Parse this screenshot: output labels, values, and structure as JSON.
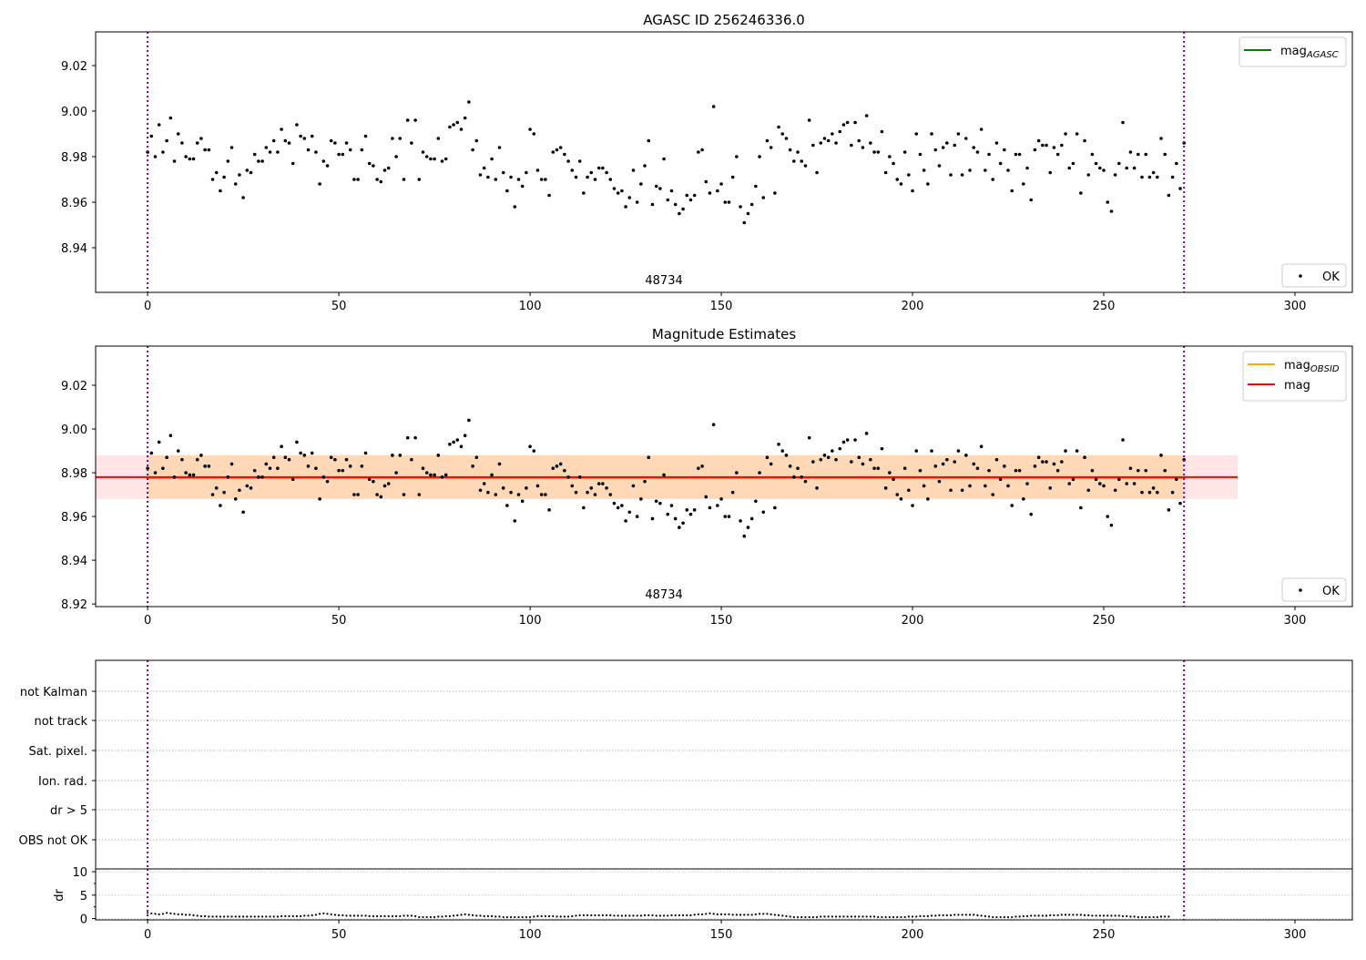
{
  "chart_data": [
    {
      "type": "scatter",
      "title": "AGASC ID 256246336.0",
      "xlim": [
        -13.6,
        315
      ],
      "ylim": [
        8.9204,
        9.0348
      ],
      "xticks": [
        0,
        50,
        100,
        150,
        200,
        250,
        300
      ],
      "yticks": [
        8.94,
        8.96,
        8.98,
        9.0,
        9.02
      ],
      "ytick_labels": [
        "8.94",
        "8.96",
        "8.98",
        "9.00",
        "9.02"
      ],
      "vlines": [
        0,
        271
      ],
      "vline_color": "#800080",
      "annotation": "48734",
      "annotation_x": 135,
      "legend_upper": [
        {
          "label": "mag",
          "sub": "AGASC",
          "color": "#008000"
        }
      ],
      "legend_lower": [
        {
          "label": "OK",
          "color": "#000000"
        }
      ],
      "series": "mag"
    },
    {
      "type": "scatter",
      "title": "Magnitude Estimates",
      "xlim": [
        -13.6,
        315
      ],
      "ylim": [
        8.9188,
        9.0379
      ],
      "xticks": [
        0,
        50,
        100,
        150,
        200,
        250,
        300
      ],
      "yticks": [
        8.92,
        8.94,
        8.96,
        8.98,
        9.0,
        9.02
      ],
      "ytick_labels": [
        "8.92",
        "8.94",
        "8.96",
        "8.98",
        "9.00",
        "9.02"
      ],
      "vlines": [
        0,
        271
      ],
      "annotation": "48734",
      "annotation_x": 135,
      "mag": 8.978,
      "mag_band": [
        8.968,
        8.988
      ],
      "mag_range_x": [
        -13.6,
        285
      ],
      "mag_obsid": 8.9775,
      "mag_obsid_band": [
        8.968,
        8.988
      ],
      "mag_obsid_range_x": [
        0,
        271
      ],
      "legend_upper": [
        {
          "label": "mag",
          "sub": "OBSID",
          "color": "#ffa500"
        },
        {
          "label": "mag",
          "sub": "",
          "color": "#ff0000"
        }
      ],
      "legend_lower": [
        {
          "label": "OK",
          "color": "#000000"
        }
      ],
      "series": "mag"
    },
    {
      "type": "table",
      "flags": [
        "not Kalman",
        "not track",
        "Sat. pixel.",
        "Ion. rad.",
        "dr > 5",
        "OBS not OK"
      ],
      "xlim": [
        -13.6,
        315
      ],
      "vlines": [
        0,
        271
      ]
    },
    {
      "type": "scatter",
      "ylabel": "dr",
      "ylim": [
        -0.3,
        10.6
      ],
      "yticks": [
        0,
        5,
        10
      ],
      "ytick_labels": [
        "0",
        "5",
        "10"
      ],
      "xticks": [
        0,
        50,
        100,
        150,
        200,
        250,
        300
      ],
      "xtick_labels": [
        "0",
        "50",
        "100",
        "150",
        "200",
        "250",
        "300"
      ],
      "xlim": [
        -13.6,
        315
      ],
      "vlines": [
        0,
        271
      ],
      "series": "dr"
    }
  ],
  "mag": [
    8.982,
    8.989,
    8.98,
    8.994,
    8.982,
    8.987,
    8.997,
    8.978,
    8.99,
    8.986,
    8.98,
    8.979,
    8.979,
    8.986,
    8.988,
    8.983,
    8.983,
    8.97,
    8.973,
    8.965,
    8.971,
    8.978,
    8.984,
    8.968,
    8.972,
    8.962,
    8.974,
    8.973,
    8.981,
    8.978,
    8.978,
    8.984,
    8.982,
    8.987,
    8.982,
    8.992,
    8.987,
    8.986,
    8.977,
    8.994,
    8.989,
    8.988,
    8.983,
    8.989,
    8.982,
    8.968,
    8.978,
    8.976,
    8.987,
    8.986,
    8.981,
    8.981,
    8.986,
    8.983,
    8.97,
    8.97,
    8.983,
    8.989,
    8.977,
    8.976,
    8.97,
    8.969,
    8.974,
    8.975,
    8.988,
    8.98,
    8.988,
    8.97,
    8.996,
    8.986,
    8.996,
    8.97,
    8.982,
    8.98,
    8.979,
    8.979,
    8.988,
    8.978,
    8.979,
    8.993,
    8.994,
    8.995,
    8.992,
    8.997,
    9.004,
    8.983,
    8.987,
    8.972,
    8.975,
    8.971,
    8.979,
    8.97,
    8.984,
    8.973,
    8.965,
    8.971,
    8.958,
    8.97,
    8.967,
    8.973,
    8.992,
    8.99,
    8.974,
    8.97,
    8.97,
    8.963,
    8.982,
    8.983,
    8.984,
    8.981,
    8.978,
    8.974,
    8.971,
    8.978,
    8.964,
    8.971,
    8.973,
    8.97,
    8.975,
    8.975,
    8.973,
    8.97,
    8.966,
    8.964,
    8.965,
    8.958,
    8.962,
    8.974,
    8.96,
    8.968,
    8.976,
    8.987,
    8.959,
    8.967,
    8.966,
    8.979,
    8.961,
    8.965,
    8.959,
    8.955,
    8.957,
    8.963,
    8.961,
    8.963,
    8.982,
    8.983,
    8.969,
    8.964,
    9.002,
    8.965,
    8.968,
    8.96,
    8.96,
    8.971,
    8.98,
    8.958,
    8.951,
    8.955,
    8.959,
    8.967,
    8.98,
    8.962,
    8.987,
    8.984,
    8.964,
    8.993,
    8.99,
    8.988,
    8.983,
    8.978,
    8.982,
    8.978,
    8.976,
    8.996,
    8.985,
    8.973,
    8.986,
    8.988,
    8.987,
    8.99,
    8.986,
    8.991,
    8.994,
    8.995,
    8.985,
    8.995,
    8.987,
    8.984,
    8.998,
    8.986,
    8.982,
    8.982,
    8.991,
    8.973,
    8.98,
    8.977,
    8.97,
    8.968,
    8.982,
    8.972,
    8.965,
    8.99,
    8.981,
    8.974,
    8.968,
    8.99,
    8.983,
    8.976,
    8.984,
    8.986,
    8.972,
    8.985,
    8.99,
    8.972,
    8.988,
    8.974,
    8.984,
    8.982,
    8.992,
    8.974,
    8.981,
    8.97,
    8.986,
    8.977,
    8.983,
    8.974,
    8.965,
    8.981,
    8.981,
    8.968,
    8.975,
    8.961,
    8.983,
    8.987,
    8.985,
    8.985,
    8.973,
    8.984,
    8.981,
    8.985,
    8.99,
    8.975,
    8.977,
    8.99,
    8.964,
    8.987,
    8.972,
    8.981,
    8.977,
    8.975,
    8.974,
    8.96,
    8.956,
    8.972,
    8.977,
    8.995,
    8.975,
    8.982,
    8.975,
    8.981,
    8.971,
    8.981,
    8.971,
    8.973,
    8.971,
    8.988,
    8.981,
    8.963,
    8.971,
    8.977,
    8.966,
    8.986
  ],
  "dr": [
    1.2,
    1.1,
    1.0,
    0.9,
    1.0,
    1.2,
    1.1,
    1.0,
    0.9,
    0.9,
    0.8,
    0.8,
    0.7,
    0.6,
    0.5,
    0.5,
    0.4,
    0.4,
    0.4,
    0.4,
    0.4,
    0.4,
    0.4,
    0.4,
    0.4,
    0.4,
    0.4,
    0.4,
    0.4,
    0.4,
    0.4,
    0.4,
    0.4,
    0.4,
    0.4,
    0.5,
    0.5,
    0.5,
    0.5,
    0.5,
    0.5,
    0.6,
    0.6,
    0.7,
    0.8,
    1.0,
    1.1,
    1.0,
    0.9,
    0.8,
    0.7,
    0.7,
    0.6,
    0.6,
    0.6,
    0.6,
    0.6,
    0.6,
    0.5,
    0.5,
    0.5,
    0.5,
    0.5,
    0.5,
    0.5,
    0.5,
    0.5,
    0.6,
    0.6,
    0.6,
    0.5,
    0.3,
    0.3,
    0.3,
    0.3,
    0.3,
    0.4,
    0.4,
    0.5,
    0.5,
    0.6,
    0.7,
    0.8,
    0.9,
    0.8,
    0.7,
    0.6,
    0.6,
    0.5,
    0.5,
    0.5,
    0.4,
    0.4,
    0.3,
    0.3,
    0.3,
    0.3,
    0.3,
    0.3,
    0.3,
    0.3,
    0.4,
    0.5,
    0.5,
    0.5,
    0.5,
    0.5,
    0.4,
    0.4,
    0.4,
    0.4,
    0.5,
    0.6,
    0.7,
    0.7,
    0.7,
    0.7,
    0.7,
    0.7,
    0.7,
    0.7,
    0.7,
    0.6,
    0.6,
    0.6,
    0.6,
    0.6,
    0.6,
    0.6,
    0.6,
    0.7,
    0.7,
    0.7,
    0.6,
    0.6,
    0.6,
    0.6,
    0.7,
    0.7,
    0.7,
    0.7,
    0.7,
    0.7,
    0.8,
    0.9,
    0.9,
    1.0,
    1.1,
    1.0,
    0.9,
    0.9,
    0.9,
    0.9,
    0.8,
    0.8,
    0.8,
    0.8,
    0.8,
    0.8,
    0.9,
    1.0,
    1.0,
    1.0,
    0.9,
    0.8,
    0.7,
    0.6,
    0.5,
    0.4,
    0.3,
    0.3,
    0.3,
    0.3,
    0.3,
    0.3,
    0.3,
    0.4,
    0.4,
    0.4,
    0.4,
    0.4,
    0.4,
    0.4,
    0.4,
    0.4,
    0.4,
    0.4,
    0.4,
    0.4,
    0.4,
    0.4,
    0.3,
    0.3,
    0.3,
    0.3,
    0.3,
    0.3,
    0.3,
    0.3,
    0.4,
    0.4,
    0.4,
    0.5,
    0.5,
    0.5,
    0.6,
    0.6,
    0.7,
    0.7,
    0.7,
    0.7,
    0.8,
    0.8,
    0.8,
    0.8,
    0.8,
    0.8,
    0.7,
    0.6,
    0.5,
    0.4,
    0.3,
    0.3,
    0.3,
    0.3,
    0.3,
    0.3,
    0.4,
    0.4,
    0.5,
    0.5,
    0.6,
    0.6,
    0.6,
    0.6,
    0.6,
    0.7,
    0.7,
    0.7,
    0.8,
    0.8,
    0.8,
    0.8,
    0.8,
    0.8,
    0.7,
    0.7,
    0.6,
    0.6,
    0.6,
    0.6,
    0.6,
    0.6,
    0.6,
    0.6,
    0.5,
    0.5,
    0.4,
    0.4,
    0.3,
    0.3,
    0.3,
    0.3,
    0.3,
    0.3,
    0.4,
    0.4,
    0.4
  ]
}
